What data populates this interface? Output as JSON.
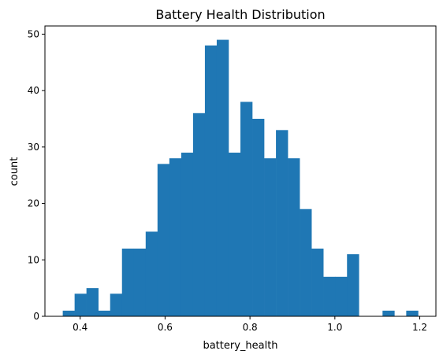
{
  "chart_data": {
    "type": "bar",
    "title": "Battery Health Distribution",
    "xlabel": "battery_health",
    "ylabel": "count",
    "bar_color": "#1f77b4",
    "bin_edges": [
      0.359,
      0.3869,
      0.4148,
      0.4427,
      0.4706,
      0.4985,
      0.5264,
      0.5543,
      0.5822,
      0.6101,
      0.638,
      0.6659,
      0.6938,
      0.7217,
      0.7496,
      0.7775,
      0.8054,
      0.8333,
      0.8612,
      0.8891,
      0.917,
      0.9449,
      0.9728,
      1.0007,
      1.0286,
      1.0565,
      1.0844,
      1.1123,
      1.1402,
      1.1681,
      1.196
    ],
    "values": [
      1,
      4,
      5,
      1,
      4,
      12,
      12,
      15,
      27,
      28,
      29,
      36,
      48,
      49,
      29,
      38,
      35,
      28,
      33,
      28,
      19,
      12,
      7,
      7,
      11,
      0,
      0,
      1,
      0,
      1
    ],
    "xlim": [
      0.317,
      1.238
    ],
    "ylim": [
      0,
      51.45
    ],
    "xticks": [
      0.4,
      0.6,
      0.8,
      1.0,
      1.2
    ],
    "xtick_labels": [
      "0.4",
      "0.6",
      "0.8",
      "1.0",
      "1.2"
    ],
    "yticks": [
      0,
      10,
      20,
      30,
      40,
      50
    ],
    "ytick_labels": [
      "0",
      "10",
      "20",
      "30",
      "40",
      "50"
    ],
    "grid": false,
    "legend": "none"
  }
}
